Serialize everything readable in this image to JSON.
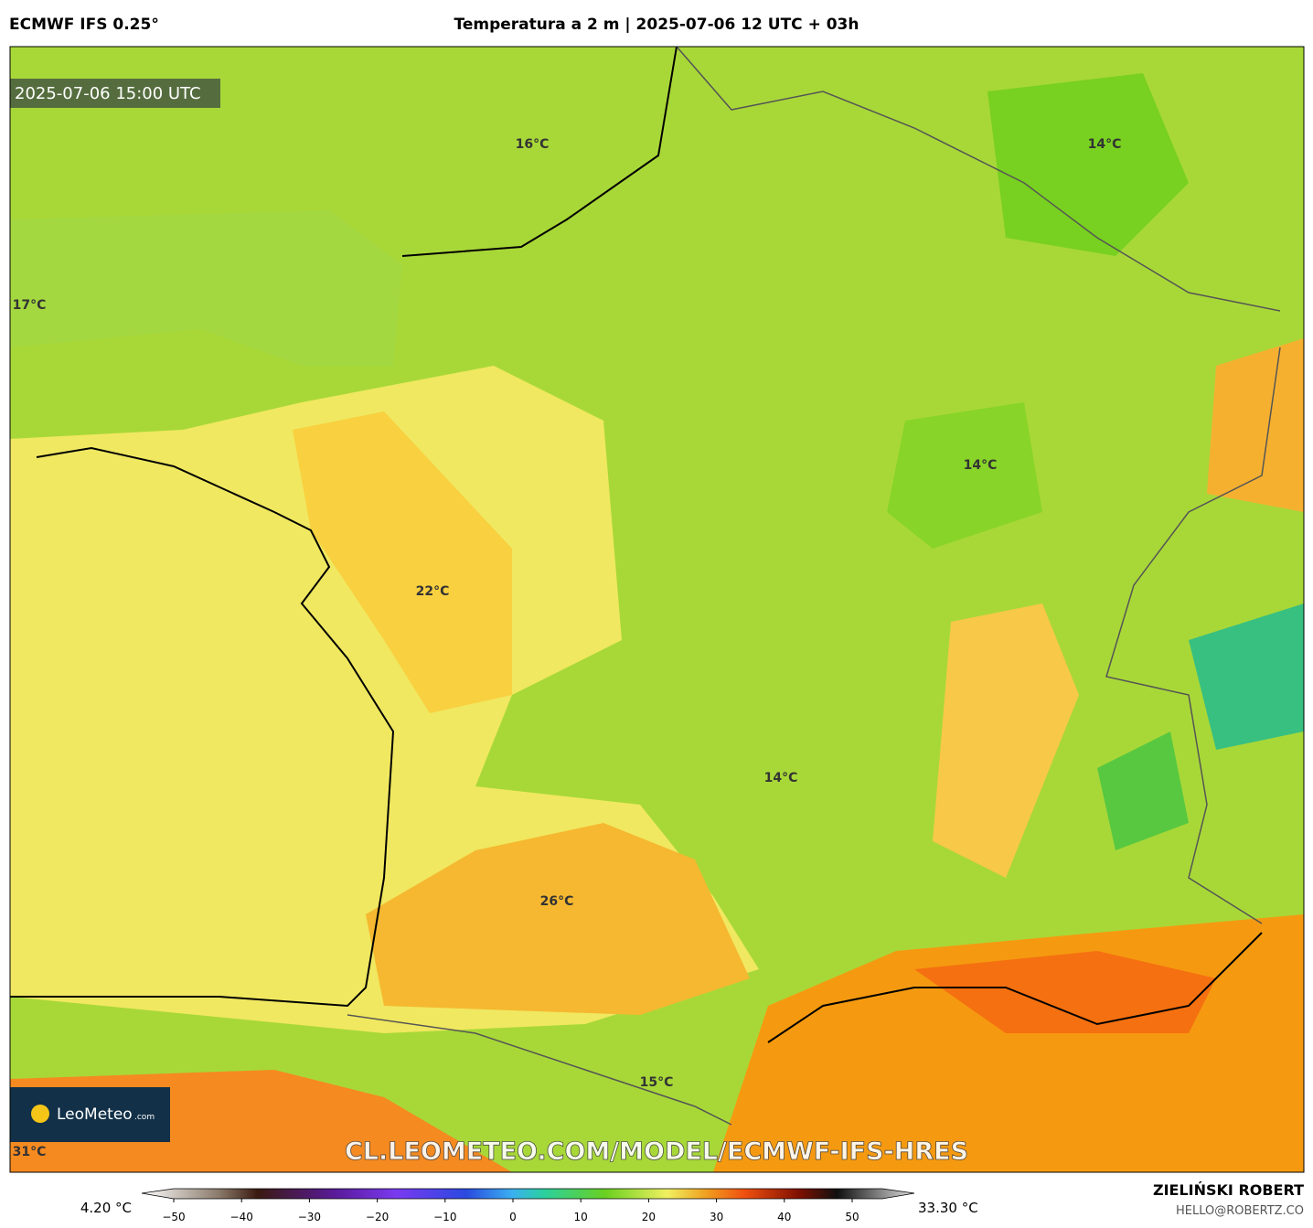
{
  "header": {
    "model": "ECMWF IFS 0.25°",
    "title": "Temperatura a 2 m | 2025-07-06 12 UTC + 03h"
  },
  "map": {
    "timestamp": "2025-07-06 15:00 UTC",
    "labels": [
      "16°C",
      "14°C",
      "17°C",
      "14°C",
      "22°C",
      "14°C",
      "26°C",
      "15°C",
      "31°C"
    ],
    "watermark": "CL.LEOMETEO.COM/MODEL/ECMWF-IFS-HRES",
    "logo": {
      "name": "LeoMeteo",
      "suffix": ".com"
    }
  },
  "colorbar": {
    "min_label": "4.20 °C",
    "max_label": "33.30 °C",
    "ticks": [
      "−50",
      "−40",
      "−30",
      "−20",
      "−10",
      "0",
      "10",
      "20",
      "30",
      "40",
      "50"
    ]
  },
  "footer": {
    "author": "ZIELIŃSKI ROBERT",
    "email": "HELLO@ROBERTZ.CO"
  }
}
